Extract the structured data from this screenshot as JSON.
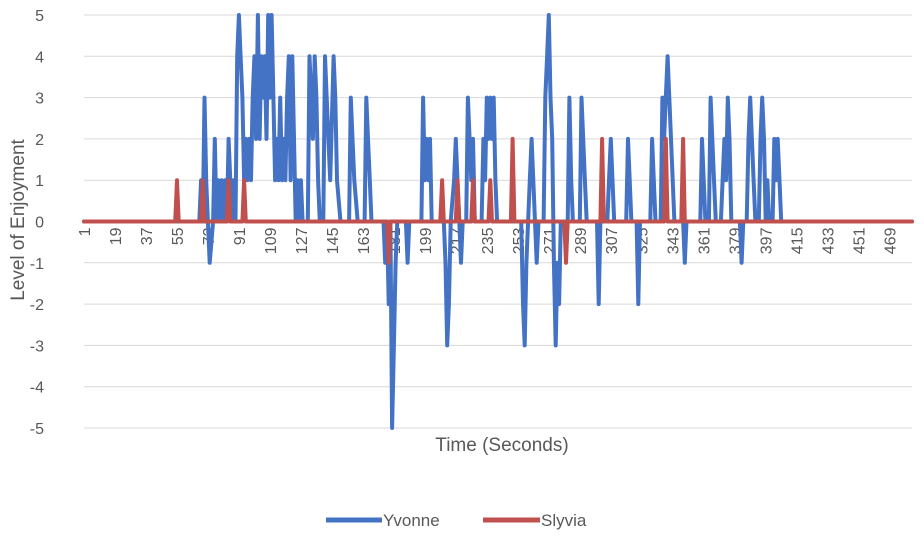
{
  "chart_data": {
    "type": "line",
    "title": "",
    "xlabel": "Time (Seconds)",
    "ylabel": "Level of Enjoyment",
    "ylim": [
      -5,
      5
    ],
    "yticks": [
      5,
      4,
      3,
      2,
      1,
      0,
      -1,
      -2,
      -3,
      -4,
      -5
    ],
    "x_range": [
      1,
      482
    ],
    "x_tick_labels": [
      "1",
      "19",
      "37",
      "55",
      "73",
      "91",
      "109",
      "127",
      "145",
      "163",
      "181",
      "199",
      "217",
      "235",
      "253",
      "271",
      "289",
      "307",
      "325",
      "343",
      "361",
      "379",
      "397",
      "415",
      "433",
      "451",
      "469"
    ],
    "grid": "horizontal",
    "legend_position": "bottom",
    "series": [
      {
        "name": "Yvonne",
        "color": "#4472c4",
        "points": [
          [
            1,
            0
          ],
          [
            68,
            0
          ],
          [
            69,
            1
          ],
          [
            70,
            0
          ],
          [
            71,
            3
          ],
          [
            72,
            1
          ],
          [
            73,
            0
          ],
          [
            74,
            -1
          ],
          [
            76,
            0
          ],
          [
            77,
            2
          ],
          [
            78,
            0
          ],
          [
            79,
            1
          ],
          [
            80,
            0
          ],
          [
            81,
            1
          ],
          [
            82,
            0
          ],
          [
            83,
            1
          ],
          [
            84,
            0
          ],
          [
            85,
            2
          ],
          [
            86,
            1
          ],
          [
            87,
            0
          ],
          [
            88,
            1
          ],
          [
            89,
            0
          ],
          [
            90,
            4
          ],
          [
            91,
            5
          ],
          [
            92,
            4
          ],
          [
            93,
            3
          ],
          [
            94,
            1
          ],
          [
            95,
            2
          ],
          [
            96,
            1
          ],
          [
            97,
            2
          ],
          [
            98,
            1
          ],
          [
            99,
            3
          ],
          [
            100,
            4
          ],
          [
            101,
            2
          ],
          [
            102,
            5
          ],
          [
            103,
            2
          ],
          [
            104,
            4
          ],
          [
            105,
            3
          ],
          [
            106,
            4
          ],
          [
            107,
            2
          ],
          [
            108,
            5
          ],
          [
            109,
            3
          ],
          [
            110,
            5
          ],
          [
            111,
            3
          ],
          [
            112,
            1
          ],
          [
            113,
            2
          ],
          [
            114,
            1
          ],
          [
            115,
            3
          ],
          [
            116,
            1
          ],
          [
            117,
            2
          ],
          [
            118,
            1
          ],
          [
            119,
            3
          ],
          [
            120,
            4
          ],
          [
            121,
            1
          ],
          [
            122,
            4
          ],
          [
            123,
            2
          ],
          [
            124,
            0
          ],
          [
            125,
            1
          ],
          [
            126,
            0
          ],
          [
            127,
            1
          ],
          [
            128,
            0
          ],
          [
            131,
            0
          ],
          [
            132,
            4
          ],
          [
            133,
            3
          ],
          [
            134,
            2
          ],
          [
            135,
            4
          ],
          [
            136,
            3
          ],
          [
            137,
            1
          ],
          [
            138,
            0
          ],
          [
            140,
            0
          ],
          [
            141,
            4
          ],
          [
            142,
            3
          ],
          [
            143,
            2
          ],
          [
            144,
            1
          ],
          [
            146,
            4
          ],
          [
            147,
            3
          ],
          [
            148,
            1
          ],
          [
            150,
            0
          ],
          [
            155,
            0
          ],
          [
            156,
            3
          ],
          [
            157,
            2
          ],
          [
            158,
            1
          ],
          [
            160,
            0
          ],
          [
            164,
            0
          ],
          [
            165,
            3
          ],
          [
            166,
            2
          ],
          [
            167,
            1
          ],
          [
            168,
            0
          ],
          [
            175,
            0
          ],
          [
            176,
            -1
          ],
          [
            177,
            0
          ],
          [
            178,
            -2
          ],
          [
            179,
            0
          ],
          [
            180,
            -5
          ],
          [
            181,
            -3
          ],
          [
            182,
            -1
          ],
          [
            183,
            0
          ],
          [
            188,
            0
          ],
          [
            189,
            -1
          ],
          [
            190,
            0
          ],
          [
            197,
            0
          ],
          [
            198,
            3
          ],
          [
            199,
            1
          ],
          [
            200,
            2
          ],
          [
            201,
            1
          ],
          [
            202,
            2
          ],
          [
            203,
            0
          ],
          [
            210,
            0
          ],
          [
            211,
            -1
          ],
          [
            212,
            -3
          ],
          [
            213,
            -2
          ],
          [
            214,
            0
          ],
          [
            216,
            1
          ],
          [
            217,
            2
          ],
          [
            218,
            1
          ],
          [
            219,
            0
          ],
          [
            220,
            -1
          ],
          [
            221,
            0
          ],
          [
            223,
            0
          ],
          [
            224,
            3
          ],
          [
            225,
            2
          ],
          [
            226,
            1
          ],
          [
            227,
            2
          ],
          [
            228,
            0
          ],
          [
            232,
            0
          ],
          [
            233,
            2
          ],
          [
            234,
            1
          ],
          [
            235,
            3
          ],
          [
            236,
            2
          ],
          [
            237,
            3
          ],
          [
            238,
            2
          ],
          [
            239,
            3
          ],
          [
            240,
            1
          ],
          [
            241,
            0
          ],
          [
            255,
            0
          ],
          [
            256,
            -2
          ],
          [
            257,
            -3
          ],
          [
            258,
            -1
          ],
          [
            259,
            0
          ],
          [
            260,
            1
          ],
          [
            261,
            2
          ],
          [
            262,
            1
          ],
          [
            263,
            0
          ],
          [
            264,
            -1
          ],
          [
            265,
            0
          ],
          [
            268,
            0
          ],
          [
            269,
            3
          ],
          [
            270,
            4
          ],
          [
            271,
            5
          ],
          [
            272,
            3
          ],
          [
            273,
            2
          ],
          [
            274,
            -1
          ],
          [
            275,
            -3
          ],
          [
            276,
            -1
          ],
          [
            277,
            -2
          ],
          [
            278,
            0
          ],
          [
            282,
            0
          ],
          [
            283,
            3
          ],
          [
            284,
            1
          ],
          [
            285,
            0
          ],
          [
            289,
            0
          ],
          [
            290,
            3
          ],
          [
            291,
            2
          ],
          [
            292,
            1
          ],
          [
            293,
            0
          ],
          [
            299,
            0
          ],
          [
            300,
            -2
          ],
          [
            301,
            0
          ],
          [
            305,
            0
          ],
          [
            306,
            1
          ],
          [
            307,
            2
          ],
          [
            308,
            1
          ],
          [
            309,
            0
          ],
          [
            316,
            0
          ],
          [
            317,
            2
          ],
          [
            318,
            1
          ],
          [
            319,
            0
          ],
          [
            322,
            0
          ],
          [
            323,
            -2
          ],
          [
            324,
            0
          ],
          [
            330,
            0
          ],
          [
            331,
            2
          ],
          [
            332,
            1
          ],
          [
            333,
            0
          ],
          [
            336,
            0
          ],
          [
            337,
            3
          ],
          [
            338,
            2
          ],
          [
            339,
            3
          ],
          [
            340,
            4
          ],
          [
            341,
            3
          ],
          [
            342,
            2
          ],
          [
            343,
            1
          ],
          [
            344,
            0
          ],
          [
            349,
            0
          ],
          [
            350,
            -1
          ],
          [
            351,
            0
          ],
          [
            359,
            0
          ],
          [
            360,
            2
          ],
          [
            361,
            1
          ],
          [
            362,
            0
          ],
          [
            364,
            0
          ],
          [
            365,
            3
          ],
          [
            366,
            2
          ],
          [
            367,
            1
          ],
          [
            368,
            0
          ],
          [
            371,
            0
          ],
          [
            372,
            1
          ],
          [
            373,
            2
          ],
          [
            374,
            1
          ],
          [
            375,
            3
          ],
          [
            376,
            2
          ],
          [
            377,
            0
          ],
          [
            382,
            0
          ],
          [
            383,
            -1
          ],
          [
            384,
            0
          ],
          [
            386,
            0
          ],
          [
            387,
            2
          ],
          [
            388,
            3
          ],
          [
            389,
            2
          ],
          [
            390,
            1
          ],
          [
            391,
            0
          ],
          [
            393,
            0
          ],
          [
            394,
            2
          ],
          [
            395,
            3
          ],
          [
            396,
            2
          ],
          [
            397,
            0
          ],
          [
            398,
            1
          ],
          [
            399,
            0
          ],
          [
            401,
            0
          ],
          [
            402,
            2
          ],
          [
            403,
            1
          ],
          [
            404,
            2
          ],
          [
            405,
            1
          ],
          [
            406,
            0
          ],
          [
            482,
            0
          ]
        ]
      },
      {
        "name": "Slyvia",
        "color": "#c0504d",
        "points": [
          [
            1,
            0
          ],
          [
            54,
            0
          ],
          [
            55,
            1
          ],
          [
            56,
            0
          ],
          [
            69,
            0
          ],
          [
            70,
            1
          ],
          [
            71,
            0
          ],
          [
            84,
            0
          ],
          [
            85,
            1
          ],
          [
            86,
            0
          ],
          [
            93,
            0
          ],
          [
            94,
            1
          ],
          [
            95,
            0
          ],
          [
            177,
            0
          ],
          [
            178,
            -1
          ],
          [
            179,
            0
          ],
          [
            208,
            0
          ],
          [
            209,
            1
          ],
          [
            210,
            0
          ],
          [
            217,
            0
          ],
          [
            218,
            1
          ],
          [
            219,
            0
          ],
          [
            226,
            0
          ],
          [
            227,
            1
          ],
          [
            228,
            0
          ],
          [
            236,
            0
          ],
          [
            237,
            1
          ],
          [
            238,
            0
          ],
          [
            249,
            0
          ],
          [
            250,
            2
          ],
          [
            251,
            0
          ],
          [
            280,
            0
          ],
          [
            281,
            -1
          ],
          [
            282,
            0
          ],
          [
            301,
            0
          ],
          [
            302,
            2
          ],
          [
            303,
            0
          ],
          [
            338,
            0
          ],
          [
            339,
            2
          ],
          [
            340,
            0
          ],
          [
            348,
            0
          ],
          [
            349,
            2
          ],
          [
            350,
            0
          ],
          [
            482,
            0
          ]
        ]
      }
    ]
  }
}
